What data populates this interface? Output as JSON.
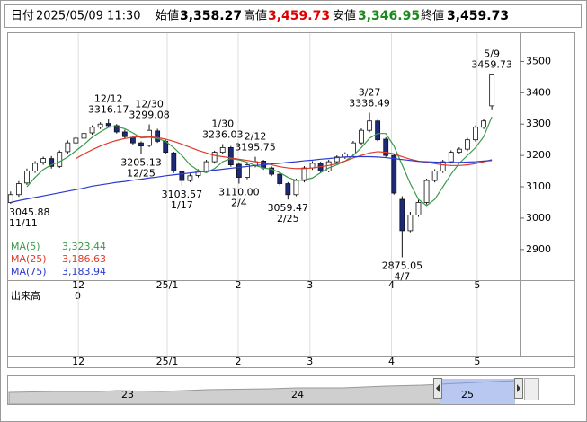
{
  "header": {
    "date_label": "日付",
    "date": "2025/05/09 11:30",
    "open_label": "始値",
    "open": "3,358.27",
    "high_label": "高値",
    "high": "3,459.73",
    "low_label": "安値",
    "low": "3,346.95",
    "close_label": "終値",
    "close": "3,459.73"
  },
  "chart_data": {
    "type": "candlestick",
    "up_color": "#ffffff",
    "down_color": "#1c2a7a",
    "open": [
      3050,
      3075,
      3112,
      3150,
      3178,
      3190,
      3165,
      3212,
      3240,
      3255,
      3272,
      3290,
      3302,
      3295,
      3275,
      3258,
      3240,
      3232,
      3278,
      3245,
      3208,
      3148,
      3120,
      3136,
      3150,
      3180,
      3210,
      3225,
      3172,
      3130,
      3168,
      3182,
      3160,
      3140,
      3110,
      3075,
      3120,
      3160,
      3175,
      3150,
      3180,
      3195,
      3205,
      3240,
      3280,
      3310,
      3252,
      3200,
      3060,
      2960,
      3010,
      3050,
      3120,
      3150,
      3180,
      3210,
      3220,
      3250,
      3290,
      3358.27
    ],
    "high": [
      3085,
      3118,
      3158,
      3182,
      3196,
      3198,
      3216,
      3248,
      3262,
      3276,
      3296,
      3306,
      3316.17,
      3300,
      3282,
      3262,
      3245,
      3299.08,
      3285,
      3250,
      3212,
      3152,
      3142,
      3156,
      3186,
      3215,
      3236.03,
      3230,
      3178,
      3175,
      3195.75,
      3186,
      3165,
      3146,
      3115,
      3126,
      3166,
      3182,
      3180,
      3186,
      3200,
      3210,
      3246,
      3286,
      3336.49,
      3314,
      3258,
      3205,
      3070,
      3020,
      3058,
      3126,
      3156,
      3186,
      3216,
      3226,
      3256,
      3296,
      3316,
      3459.73
    ],
    "low": [
      3045.88,
      3068,
      3106,
      3144,
      3170,
      3158,
      3160,
      3206,
      3234,
      3249,
      3266,
      3284,
      3288,
      3270,
      3254,
      3234,
      3205.13,
      3226,
      3240,
      3204,
      3144,
      3103.57,
      3115,
      3130,
      3145,
      3174,
      3204,
      3164,
      3110,
      3124,
      3162,
      3154,
      3134,
      3104,
      3059.47,
      3070,
      3114,
      3154,
      3144,
      3146,
      3174,
      3189,
      3198,
      3234,
      3274,
      3245,
      3195,
      3075,
      2875.05,
      2955,
      3004,
      3044,
      3114,
      3144,
      3174,
      3204,
      3214,
      3244,
      3284,
      3346.95
    ],
    "close": [
      3075,
      3110,
      3150,
      3175,
      3190,
      3165,
      3210,
      3240,
      3255,
      3270,
      3290,
      3300,
      3295,
      3275,
      3260,
      3240,
      3230,
      3280,
      3245,
      3210,
      3150,
      3120,
      3135,
      3150,
      3180,
      3210,
      3225,
      3170,
      3130,
      3170,
      3180,
      3160,
      3140,
      3110,
      3075,
      3120,
      3160,
      3175,
      3150,
      3180,
      3195,
      3205,
      3240,
      3280,
      3310,
      3250,
      3200,
      3080,
      2960,
      3010,
      3050,
      3120,
      3150,
      3180,
      3210,
      3220,
      3250,
      3290,
      3310,
      3459.73
    ],
    "series": [
      {
        "name": "MA(5)",
        "color": "#3a9a4a",
        "last_label": "3,323.44",
        "values": [
          null,
          null,
          3100,
          3130,
          3155,
          3170,
          3180,
          3195,
          3215,
          3235,
          3258,
          3275,
          3290,
          3292,
          3285,
          3272,
          3256,
          3258,
          3254,
          3245,
          3225,
          3200,
          3170,
          3152,
          3145,
          3158,
          3180,
          3190,
          3186,
          3178,
          3168,
          3160,
          3156,
          3145,
          3130,
          3120,
          3122,
          3128,
          3145,
          3160,
          3170,
          3182,
          3200,
          3225,
          3255,
          3270,
          3270,
          3230,
          3170,
          3110,
          3060,
          3040,
          3060,
          3100,
          3140,
          3175,
          3200,
          3225,
          3260,
          3323.44
        ]
      },
      {
        "name": "MA(25)",
        "color": "#e03a2a",
        "last_label": "3,186.63",
        "values": [
          null,
          null,
          null,
          null,
          null,
          null,
          null,
          null,
          3190,
          3205,
          3218,
          3230,
          3240,
          3248,
          3254,
          3258,
          3260,
          3260,
          3257,
          3252,
          3245,
          3236,
          3226,
          3216,
          3208,
          3200,
          3196,
          3192,
          3188,
          3184,
          3180,
          3176,
          3170,
          3164,
          3160,
          3158,
          3158,
          3160,
          3164,
          3168,
          3174,
          3182,
          3192,
          3200,
          3208,
          3212,
          3210,
          3205,
          3196,
          3188,
          3182,
          3178,
          3174,
          3170,
          3168,
          3168,
          3170,
          3174,
          3180,
          3186.63
        ]
      },
      {
        "name": "MA(75)",
        "color": "#2a3ad0",
        "last_label": "3,183.94",
        "values": [
          3050,
          3056,
          3061,
          3066,
          3071,
          3076,
          3081,
          3086,
          3091,
          3096,
          3102,
          3106,
          3110,
          3114,
          3117,
          3121,
          3124,
          3128,
          3131,
          3135,
          3138,
          3141,
          3144,
          3147,
          3150,
          3153,
          3156,
          3159,
          3162,
          3165,
          3168,
          3170,
          3173,
          3175,
          3178,
          3180,
          3183,
          3185,
          3188,
          3190,
          3193,
          3195,
          3196,
          3196,
          3196,
          3195,
          3193,
          3190,
          3187,
          3184,
          3181,
          3180,
          3179,
          3178,
          3178,
          3178,
          3179,
          3180,
          3182,
          3183.94
        ]
      }
    ],
    "xlim": [
      -0.2,
      62.4
    ],
    "xticks": [
      {
        "value": 8.3,
        "label": "12"
      },
      {
        "value": 19.2,
        "label": "25/1"
      },
      {
        "value": 27.9,
        "label": "2"
      },
      {
        "value": 36.7,
        "label": "3"
      },
      {
        "value": 46.7,
        "label": "4"
      },
      {
        "value": 57.2,
        "label": "5"
      }
    ],
    "ylim": [
      2805,
      3590
    ],
    "yticks": [
      2900,
      3000,
      3100,
      3200,
      3300,
      3400,
      3500
    ],
    "annotations": [
      {
        "x": 0,
        "kind": "low",
        "value": 3045.88,
        "label": "3045.88",
        "date": "11/11"
      },
      {
        "x": 12,
        "kind": "high",
        "value": 3316.17,
        "label": "3316.17",
        "date": "12/12"
      },
      {
        "x": 16,
        "kind": "low",
        "value": 3205.13,
        "label": "3205.13",
        "date": "12/25"
      },
      {
        "x": 17,
        "kind": "high",
        "value": 3299.08,
        "label": "3299.08",
        "date": "12/30"
      },
      {
        "x": 21,
        "kind": "low",
        "value": 3103.57,
        "label": "3103.57",
        "date": "1/17"
      },
      {
        "x": 26,
        "kind": "high",
        "value": 3236.03,
        "label": "3236.03",
        "date": "1/30"
      },
      {
        "x": 28,
        "kind": "low",
        "value": 3110,
        "label": "3110.00",
        "date": "2/4"
      },
      {
        "x": 30,
        "kind": "high",
        "value": 3195.75,
        "label": "3195.75",
        "date": "2/12"
      },
      {
        "x": 34,
        "kind": "low",
        "value": 3059.47,
        "label": "3059.47",
        "date": "2/25"
      },
      {
        "x": 44,
        "kind": "high",
        "value": 3336.49,
        "label": "3336.49",
        "date": "3/27"
      },
      {
        "x": 48,
        "kind": "low",
        "value": 2875.05,
        "label": "2875.05",
        "date": "4/7"
      },
      {
        "x": 59,
        "kind": "high",
        "value": 3459.73,
        "label": "3459.73",
        "date": "5/9"
      }
    ],
    "volume": {
      "label": "出来高",
      "value": 0
    }
  },
  "navigator": {
    "labels": [
      "23",
      "24",
      "25"
    ]
  }
}
